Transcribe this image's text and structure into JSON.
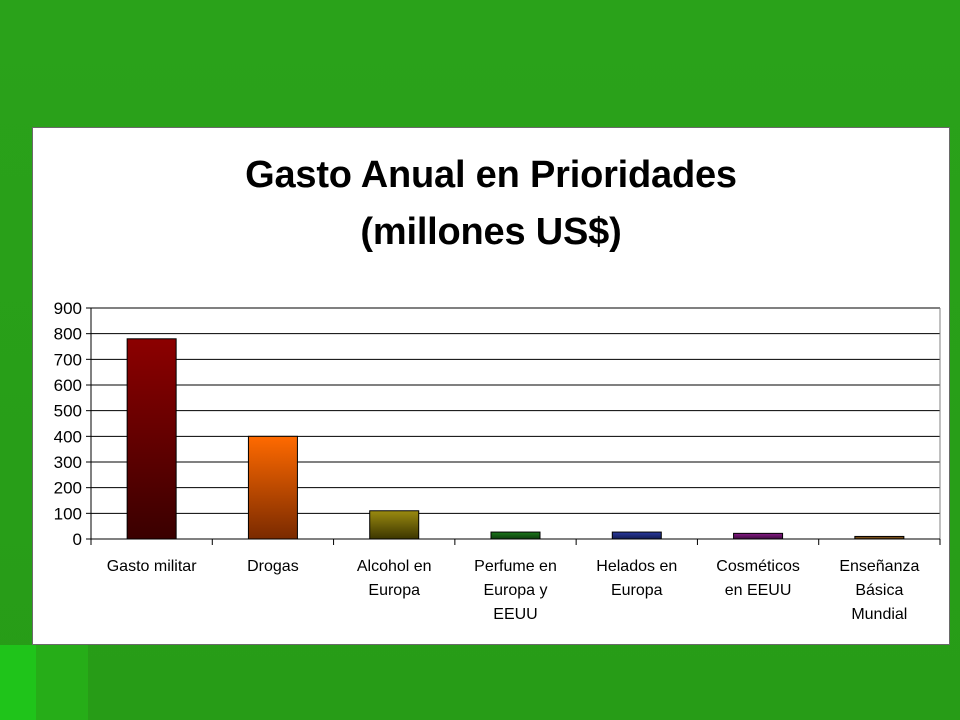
{
  "chart_data": {
    "type": "bar",
    "title": "Gasto Anual en Prioridades",
    "subtitle": "(millones US$)",
    "categories": [
      [
        "Gasto militar"
      ],
      [
        "Drogas"
      ],
      [
        "Alcohol en",
        "Europa"
      ],
      [
        "Perfume en",
        "Europa y",
        "EEUU"
      ],
      [
        "Helados en",
        "Europa"
      ],
      [
        "Cosméticos",
        "en EEUU"
      ],
      [
        "Enseñanza",
        "Básica",
        "Mundial"
      ]
    ],
    "values": [
      780,
      400,
      110,
      27,
      27,
      22,
      10
    ],
    "ylim": [
      0,
      900
    ],
    "yticks": [
      0,
      100,
      200,
      300,
      400,
      500,
      600,
      700,
      800,
      900
    ],
    "grid": true,
    "bar_colors": [
      [
        "#8c0000",
        "#3a0000"
      ],
      [
        "#ff6a00",
        "#7a2a00"
      ],
      [
        "#9a8a10",
        "#3c3600"
      ],
      [
        "#1c7a1c",
        "#0c3c0c"
      ],
      [
        "#2a3aa0",
        "#101a50"
      ],
      [
        "#8a1a8a",
        "#3c0c3c"
      ],
      [
        "#a06a20",
        "#40280c"
      ]
    ]
  }
}
